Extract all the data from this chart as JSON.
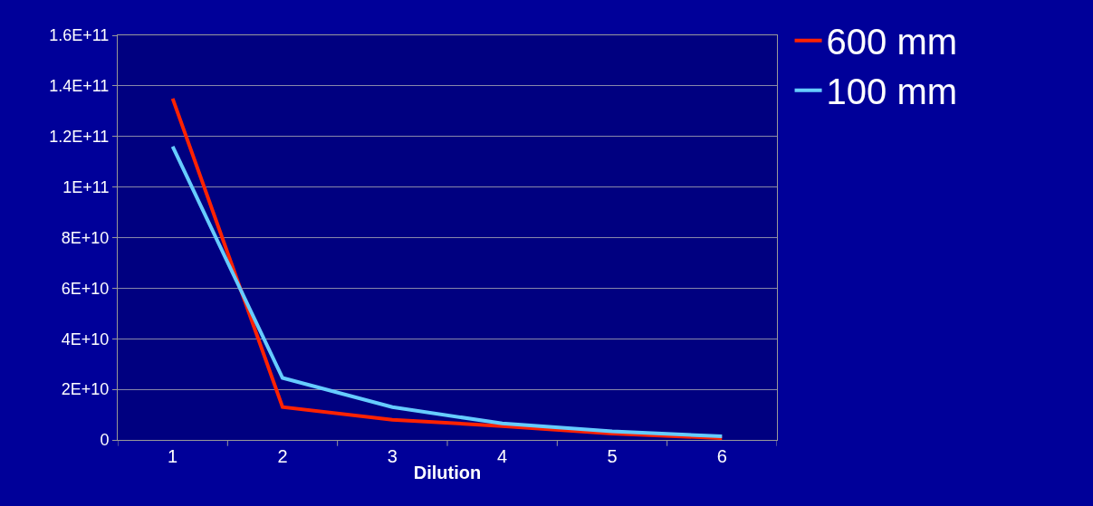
{
  "chart_data": {
    "type": "line",
    "xlabel": "Dilution",
    "categories": [
      "1",
      "2",
      "3",
      "4",
      "5",
      "6"
    ],
    "series": [
      {
        "name": "600 mm",
        "color": "#ff2200",
        "values": [
          135000000000.0,
          13000000000.0,
          8000000000.0,
          5500000000.0,
          2500000000.0,
          700000000.0
        ]
      },
      {
        "name": "100 mm",
        "color": "#66ccff",
        "values": [
          116000000000.0,
          24500000000.0,
          13000000000.0,
          6500000000.0,
          3400000000.0,
          1400000000.0
        ]
      }
    ],
    "ylim": [
      0,
      160000000000.0
    ],
    "yticks": [
      0,
      {
        "value": 20000000000.0,
        "label": "2E+10"
      },
      {
        "value": 40000000000.0,
        "label": "4E+10"
      },
      {
        "value": 60000000000.0,
        "label": "6E+10"
      },
      {
        "value": 80000000000.0,
        "label": "8E+10"
      },
      {
        "value": 100000000000.0,
        "label": "1E+11"
      },
      {
        "value": 120000000000.0,
        "label": "1.2E+11"
      },
      {
        "value": 140000000000.0,
        "label": "1.4E+11"
      },
      {
        "value": 160000000000.0,
        "label": "1.6E+11"
      }
    ],
    "grid": "y",
    "legend": "top right",
    "marker": "none",
    "line_style": "solid"
  }
}
